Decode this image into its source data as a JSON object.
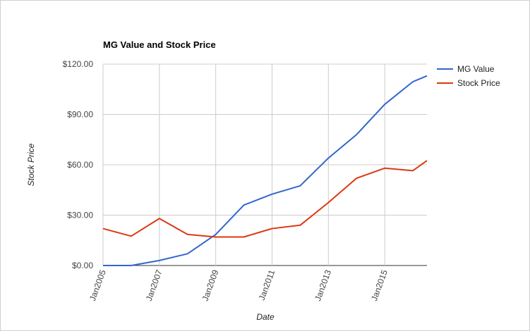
{
  "chart_data": {
    "type": "line",
    "title": "MG Value and Stock Price",
    "xlabel": "Date",
    "ylabel": "Stock Price",
    "x": [
      2005,
      2006,
      2007,
      2008,
      2009,
      2010,
      2011,
      2012,
      2013,
      2014,
      2015,
      2016,
      2016.5
    ],
    "xlim": [
      2005,
      2016.5
    ],
    "ylim": [
      0,
      120
    ],
    "y_ticks": [
      0,
      30,
      60,
      90,
      120
    ],
    "y_tick_labels": [
      "$0.00",
      "$30.00",
      "$60.00",
      "$90.00",
      "$120.00"
    ],
    "x_ticks": [
      2005,
      2007,
      2009,
      2011,
      2013,
      2015
    ],
    "x_tick_labels": [
      "Jan2005",
      "Jan2007",
      "Jan2009",
      "Jan2011",
      "Jan2013",
      "Jan2015"
    ],
    "grid": true,
    "legend_position": "right",
    "series": [
      {
        "name": "MG Value",
        "color": "#3366cc",
        "values": [
          0,
          0,
          3,
          7,
          18.5,
          36,
          42.5,
          47.5,
          64,
          78,
          96,
          109.5,
          113
        ]
      },
      {
        "name": "Stock Price",
        "color": "#dc3912",
        "values": [
          22,
          17.5,
          28,
          18.5,
          17,
          17,
          22,
          24,
          37.5,
          52,
          58,
          56.5,
          62.5
        ]
      }
    ]
  }
}
